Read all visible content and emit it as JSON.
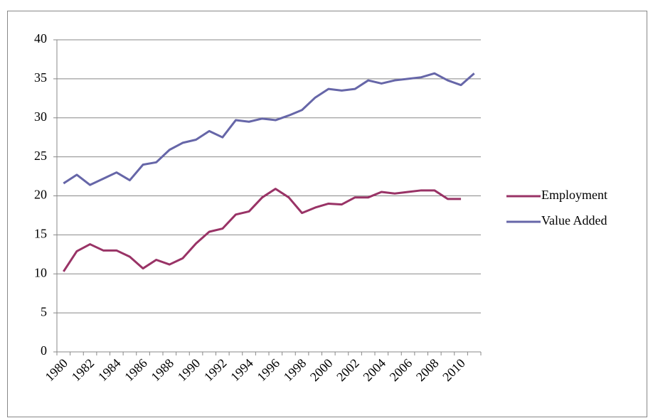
{
  "chart_data": {
    "type": "line",
    "categories": [
      "1980",
      null,
      "1982",
      null,
      "1984",
      null,
      "1986",
      null,
      "1988",
      null,
      "1990",
      null,
      "1992",
      null,
      "1994",
      null,
      "1996",
      null,
      "1998",
      null,
      "2000",
      null,
      "2002",
      null,
      "2004",
      null,
      "2006",
      null,
      "2008",
      null,
      "2010",
      null
    ],
    "series": [
      {
        "name": "Employment",
        "color": "#993366",
        "values": [
          10.3,
          12.9,
          13.8,
          13.0,
          13.0,
          12.2,
          10.7,
          11.8,
          11.2,
          12.0,
          13.9,
          15.4,
          15.8,
          17.6,
          18.0,
          19.8,
          20.9,
          19.8,
          17.8,
          18.5,
          19.0,
          18.9,
          19.8,
          19.8,
          20.5,
          20.3,
          20.5,
          20.7,
          20.7,
          19.6,
          19.6,
          null
        ]
      },
      {
        "name": "Value Added",
        "color": "#6666a8",
        "values": [
          21.6,
          22.7,
          21.4,
          22.2,
          23.0,
          22.0,
          24.0,
          24.3,
          25.9,
          26.8,
          27.2,
          28.3,
          27.5,
          29.7,
          29.5,
          29.9,
          29.7,
          30.3,
          31.0,
          32.6,
          33.7,
          33.5,
          33.7,
          34.8,
          34.4,
          34.8,
          35.0,
          35.2,
          35.7,
          34.8,
          34.2,
          35.7
        ]
      }
    ],
    "ylim": [
      0,
      40
    ],
    "yticks": [
      0,
      5,
      10,
      15,
      20,
      25,
      30,
      35,
      40
    ],
    "grid": true,
    "legend": "right"
  }
}
